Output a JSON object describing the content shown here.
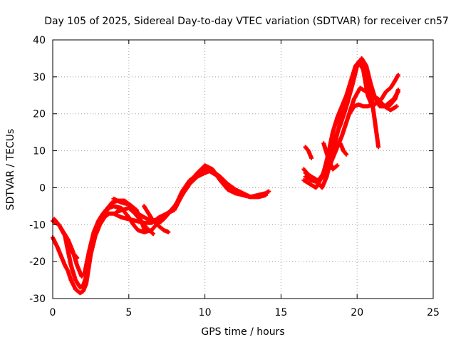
{
  "chart_data": {
    "type": "scatter",
    "title": "Day 105 of 2025, Sidereal Day-to-day VTEC variation (SDTVAR) for receiver cn57",
    "xlabel": "GPS time / hours",
    "ylabel": "SDTVAR / TECUs",
    "xlim": [
      0,
      25
    ],
    "ylim": [
      -30,
      40
    ],
    "xticks": [
      "0",
      "5",
      "10",
      "15",
      "20",
      "25"
    ],
    "yticks": [
      "-30",
      "-20",
      "-10",
      "0",
      "10",
      "20",
      "30",
      "40"
    ],
    "grid": true,
    "marker": "plus",
    "series": [
      {
        "name": "SDTVAR",
        "color": "#ff0000",
        "tracks": [
          {
            "x": [
              0.0,
              0.3,
              0.6,
              0.8,
              1.0,
              1.2,
              1.5,
              1.8,
              2.0,
              2.2,
              2.5,
              2.8,
              3.1,
              3.4,
              3.7,
              4.0,
              4.5,
              5.0,
              5.5,
              6.0,
              6.5,
              7.0,
              7.5,
              8.0,
              8.5,
              9.0,
              9.5,
              10.0,
              10.3,
              10.7,
              11.0,
              11.5,
              12.0,
              12.5,
              13.0,
              13.5,
              14.0
            ],
            "y": [
              -13.5,
              -16,
              -19,
              -21,
              -22.5,
              -25,
              -27.5,
              -28.5,
              -28,
              -26,
              -18,
              -13,
              -10,
              -8,
              -7,
              -7,
              -8,
              -8.5,
              -9,
              -9.5,
              -9.5,
              -8,
              -7,
              -6,
              -2,
              1,
              3,
              4,
              4.5,
              3.5,
              2.5,
              0.5,
              -1,
              -2,
              -2.5,
              -2.5,
              -2
            ]
          },
          {
            "x": [
              0.0,
              0.4,
              0.8,
              1.2,
              1.5,
              1.8,
              2.0,
              2.2,
              2.5,
              2.8,
              3.1,
              3.4,
              3.7,
              4.0,
              4.5,
              5.0,
              5.3,
              5.6,
              6.0,
              6.5,
              7.0,
              7.5,
              8.0,
              8.5,
              9.0,
              9.5,
              10.0,
              10.5,
              11.0,
              11.5,
              12.0,
              12.5,
              13.0,
              13.5,
              14.0,
              14.2
            ],
            "y": [
              -9,
              -10,
              -13,
              -21,
              -25,
              -27,
              -26.5,
              -24,
              -17,
              -12,
              -9,
              -7,
              -5.5,
              -5,
              -5.5,
              -8,
              -10,
              -11.5,
              -12,
              -11.5,
              -9,
              -7,
              -5.5,
              -1,
              2,
              3.5,
              5,
              4.5,
              3,
              1,
              -0.5,
              -1.5,
              -2.5,
              -2,
              -1.5,
              -1
            ]
          },
          {
            "x": [
              0.1,
              0.4,
              0.7,
              1.0,
              1.3,
              1.6,
              1.9,
              2.1,
              2.4,
              2.7,
              3.0,
              3.3,
              3.6,
              3.9,
              4.3,
              4.7,
              5.2,
              5.6,
              6.0,
              6.5,
              7.0,
              7.5,
              8.0,
              8.5,
              9.0,
              9.5,
              10.0,
              10.5,
              11.0,
              11.5,
              12.0,
              12.5,
              13.0,
              13.5,
              14.0
            ],
            "y": [
              -8.5,
              -10,
              -12,
              -14,
              -17,
              -21,
              -24,
              -23,
              -17,
              -12,
              -9,
              -7,
              -5.5,
              -4,
              -3.5,
              -3.5,
              -5,
              -7,
              -8,
              -9,
              -8.5,
              -7.5,
              -5,
              -2,
              1.5,
              4,
              6,
              5,
              2,
              -0.5,
              -1.5,
              -2,
              -2.5,
              -2.5,
              -2
            ]
          },
          {
            "x": [
              1.0,
              1.2,
              1.4,
              1.6
            ],
            "y": [
              -16,
              -17,
              -18,
              -19
            ]
          },
          {
            "x": [
              4.0,
              4.5,
              5.0,
              5.5,
              5.8,
              6.1
            ],
            "y": [
              -3,
              -4,
              -4.5,
              -6,
              -9,
              -12
            ]
          },
          {
            "x": [
              4.2,
              4.6,
              5.0,
              5.4,
              5.8,
              6.2,
              6.6
            ],
            "y": [
              -6.5,
              -6,
              -5.5,
              -7,
              -9,
              -11,
              -12.5
            ]
          },
          {
            "x": [
              6.0,
              6.3,
              6.6,
              7.0,
              7.3,
              7.6
            ],
            "y": [
              -5,
              -7,
              -9,
              -10.5,
              -11.5,
              -12
            ]
          },
          {
            "x": [
              7.0,
              7.3,
              7.6,
              7.9
            ],
            "y": [
              -9.5,
              -8.5,
              -7,
              -5.5
            ]
          },
          {
            "x": [
              16.5,
              16.9,
              17.3,
              17.7,
              18.1,
              18.5,
              18.9,
              19.3,
              19.7,
              20.0,
              20.3,
              20.6,
              20.9,
              21.2,
              21.5,
              21.8,
              22.1,
              22.4,
              22.7
            ],
            "y": [
              2,
              1,
              0,
              3,
              8,
              13,
              17,
              22,
              28,
              33,
              35,
              33,
              28,
              24,
              22,
              22,
              23,
              24,
              26
            ]
          },
          {
            "x": [
              16.5,
              16.9,
              17.3,
              17.7,
              18.0,
              18.3,
              18.6,
              18.9,
              19.2,
              19.5,
              19.8,
              20.1,
              20.4,
              20.7,
              21.0,
              21.3,
              21.6,
              21.9,
              22.2,
              22.5,
              22.7
            ],
            "y": [
              5,
              3,
              2,
              0,
              3,
              8,
              13,
              18,
              22,
              26,
              31,
              34,
              32,
              25,
              22,
              23,
              24,
              26,
              27,
              29,
              30.5
            ]
          },
          {
            "x": [
              16.6,
              17.0,
              17.4,
              17.8,
              18.1,
              18.4,
              18.7,
              19.0,
              19.3,
              19.6,
              19.9,
              20.2,
              20.5,
              20.8,
              21.1,
              21.4
            ],
            "y": [
              3,
              2,
              1.5,
              4,
              9,
              15,
              19,
              22,
              25,
              29,
              33,
              34.5,
              33,
              28,
              20,
              11
            ]
          },
          {
            "x": [
              16.6,
              17.0,
              17.4,
              17.8,
              18.2,
              18.6,
              19.0,
              19.4,
              19.8,
              20.2,
              20.6,
              21.0,
              21.4,
              21.8,
              22.2,
              22.6
            ],
            "y": [
              4,
              3,
              2,
              3,
              6,
              10,
              14,
              19,
              24,
              27,
              26,
              25,
              24,
              22,
              21,
              22
            ]
          },
          {
            "x": [
              16.6,
              16.8,
              17.0
            ],
            "y": [
              11,
              10,
              8
            ]
          },
          {
            "x": [
              17.8,
              18.1,
              18.4,
              18.7
            ],
            "y": [
              12,
              8,
              5,
              6
            ]
          },
          {
            "x": [
              18.9,
              19.1,
              19.3
            ],
            "y": [
              12,
              10,
              9
            ]
          },
          {
            "x": [
              19.5,
              19.8,
              20.1,
              20.4,
              20.7,
              21.0,
              21.3,
              21.6,
              21.9,
              22.2,
              22.5,
              22.7
            ],
            "y": [
              20,
              22,
              22.5,
              22,
              22,
              22.5,
              23,
              22.5,
              22,
              22.5,
              24,
              26.5
            ]
          }
        ]
      }
    ]
  }
}
